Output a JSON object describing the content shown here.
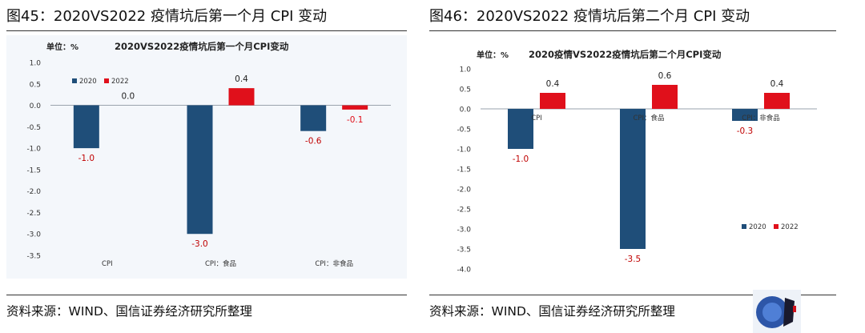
{
  "colors": {
    "2020": "#1f4e79",
    "2022": "#e0101b",
    "label_2022": "#e0101b",
    "label_2020": "#c00000"
  },
  "left": {
    "figure_title": "图45：2020VS2022 疫情坑后第一个月 CPI 变动",
    "source": "资料来源：WIND、国信证券经济研究所整理",
    "chart_data": {
      "type": "bar",
      "title": "2020VS2022疫情坑后第一个月CPI变动",
      "unit_label": "单位：%",
      "categories": [
        "CPI",
        "CPI：食品",
        "CPI：非食品"
      ],
      "series": [
        {
          "name": "2020",
          "values": [
            -1.0,
            -3.0,
            -0.6
          ],
          "labels": [
            "-1.0",
            "-3.0",
            "-0.6"
          ]
        },
        {
          "name": "2022",
          "values": [
            0.0,
            0.4,
            -0.1
          ],
          "labels": [
            "0.0",
            "0.4",
            "-0.1"
          ]
        }
      ],
      "ylim": [
        -3.5,
        1.0
      ],
      "yticks": [
        "1.0",
        "0.5",
        "0.0",
        "-0.5",
        "-1.0",
        "-1.5",
        "-2.0",
        "-2.5",
        "-3.0",
        "-3.5"
      ],
      "legend": "top-left"
    }
  },
  "right": {
    "figure_title": "图46：2020VS2022 疫情坑后第二个月 CPI 变动",
    "source": "资料来源：WIND、国信证券经济研究所整理",
    "chart_data": {
      "type": "bar",
      "title": "2020疫情VS2022疫情坑后第二个月CPI变动",
      "unit_label": "单位：%",
      "categories": [
        "CPI",
        "CPI：食品",
        "CPI：非食品"
      ],
      "series": [
        {
          "name": "2020",
          "values": [
            -1.0,
            -3.5,
            -0.3
          ],
          "labels": [
            "-1.0",
            "-3.5",
            "-0.3"
          ]
        },
        {
          "name": "2022",
          "values": [
            0.4,
            0.6,
            0.4
          ],
          "labels": [
            "0.4",
            "0.6",
            "0.4"
          ]
        }
      ],
      "ylim": [
        -4.0,
        1.0
      ],
      "yticks": [
        "1.0",
        "0.5",
        "0.0",
        "-0.5",
        "-1.0",
        "-1.5",
        "-2.0",
        "-2.5",
        "-3.0",
        "-3.5",
        "-4.0"
      ],
      "legend": "bottom-right"
    }
  }
}
